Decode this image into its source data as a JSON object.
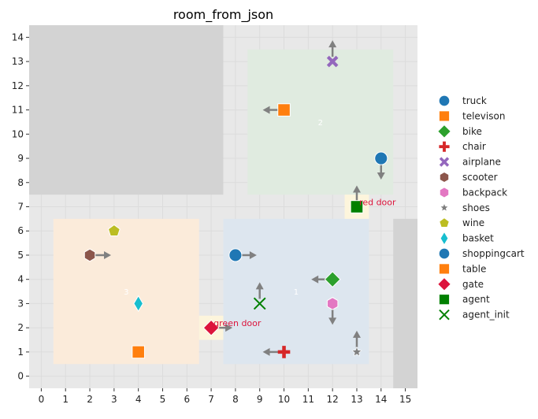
{
  "chart_data": {
    "type": "scatter",
    "title": "room_from_json",
    "xlim": [
      -0.5,
      15.5
    ],
    "ylim": [
      -0.5,
      14.5
    ],
    "xticks": [
      0,
      1,
      2,
      3,
      4,
      5,
      6,
      7,
      8,
      9,
      10,
      11,
      12,
      13,
      14,
      15
    ],
    "yticks": [
      0,
      1,
      2,
      3,
      4,
      5,
      6,
      7,
      8,
      9,
      10,
      11,
      12,
      13,
      14
    ],
    "grid": true,
    "legend_position": "right",
    "background": "#e8e8e8",
    "walls": [
      {
        "x": [
          -0.5,
          7.5
        ],
        "y": [
          7.5,
          14.5
        ],
        "color": "#d3d3d3"
      },
      {
        "x": [
          14.5,
          15.5
        ],
        "y": [
          -0.5,
          6.5
        ],
        "color": "#d3d3d3"
      }
    ],
    "rooms": [
      {
        "label": "1",
        "x": [
          7.5,
          13.5
        ],
        "y": [
          0.5,
          6.5
        ],
        "color": "#dde6ef",
        "label_pos": [
          10.5,
          3.5
        ]
      },
      {
        "label": "2",
        "x": [
          8.5,
          14.5
        ],
        "y": [
          7.5,
          13.5
        ],
        "color": "#e0ebe0",
        "label_pos": [
          11.5,
          10.5
        ]
      },
      {
        "label": "3",
        "x": [
          0.5,
          6.5
        ],
        "y": [
          0.5,
          6.5
        ],
        "color": "#fbebda",
        "label_pos": [
          3.5,
          3.5
        ]
      }
    ],
    "doors": [
      {
        "x": [
          12.5,
          13.5
        ],
        "y": [
          6.5,
          7.5
        ],
        "color": "#fdf5dc",
        "label": "red door",
        "label_pos": [
          13.1,
          7.2
        ]
      },
      {
        "x": [
          6.5,
          7.5
        ],
        "y": [
          1.5,
          2.5
        ],
        "color": "#fdf5dc",
        "label": "green door",
        "label_pos": [
          7.1,
          2.2
        ]
      }
    ],
    "series": [
      {
        "name": "truck",
        "marker": "circle",
        "color": "#1f77b4",
        "x": 14,
        "y": 9,
        "dir": "down"
      },
      {
        "name": "televison",
        "marker": "square",
        "color": "#ff7f0e",
        "x": 10,
        "y": 11,
        "dir": "left"
      },
      {
        "name": "bike",
        "marker": "diamond",
        "color": "#2ca02c",
        "x": 12,
        "y": 4,
        "dir": "left"
      },
      {
        "name": "chair",
        "marker": "plus",
        "color": "#d62728",
        "x": 10,
        "y": 1,
        "dir": "left"
      },
      {
        "name": "airplane",
        "marker": "x",
        "color": "#9467bd",
        "x": 12,
        "y": 13,
        "dir": "up"
      },
      {
        "name": "scooter",
        "marker": "hexagon",
        "color": "#8c564b",
        "x": 2,
        "y": 5,
        "dir": "right"
      },
      {
        "name": "backpack",
        "marker": "hexagon",
        "color": "#e377c2",
        "x": 12,
        "y": 3,
        "dir": "down"
      },
      {
        "name": "shoes",
        "marker": "star",
        "color": "#7f7f7f",
        "x": 13,
        "y": 1,
        "dir": "up"
      },
      {
        "name": "wine",
        "marker": "pentagon",
        "color": "#bcbd22",
        "x": 3,
        "y": 6,
        "dir": null
      },
      {
        "name": "basket",
        "marker": "thin_diamond",
        "color": "#17becf",
        "x": 4,
        "y": 3,
        "dir": null
      },
      {
        "name": "shoppingcart",
        "marker": "circle",
        "color": "#1f77b4",
        "x": 8,
        "y": 5,
        "dir": "right"
      },
      {
        "name": "table",
        "marker": "square",
        "color": "#ff7f0e",
        "x": 4,
        "y": 1,
        "dir": null
      },
      {
        "name": "gate",
        "marker": "diamond",
        "color": "#dc143c",
        "x": 7,
        "y": 2,
        "dir": "right"
      },
      {
        "name": "agent",
        "marker": "square",
        "color": "#008000",
        "x": 13,
        "y": 7,
        "dir": "up"
      },
      {
        "name": "agent_init",
        "marker": "xline",
        "color": "#008000",
        "x": 9,
        "y": 3,
        "dir": "up"
      }
    ]
  }
}
